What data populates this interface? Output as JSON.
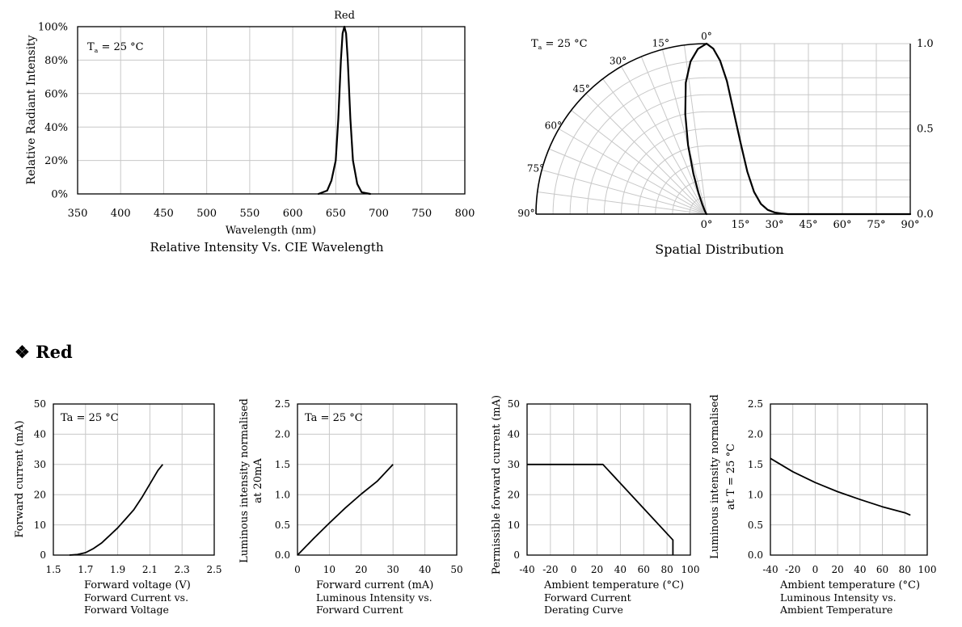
{
  "section": {
    "bullet": "❖",
    "title": "Red"
  },
  "chart_data": [
    {
      "id": "spectrum",
      "type": "line",
      "title": "Red",
      "caption": "Relative Intensity Vs. CIE Wavelength",
      "xlabel": "Wavelength (nm)",
      "ylabel": "Relative Radiant Intensity",
      "annotation_main": "T",
      "annotation_sub": "a",
      "annotation_rest": " = 25 °C",
      "xlim": [
        350,
        800
      ],
      "ylim": [
        0,
        100
      ],
      "xticks": [
        "350",
        "400",
        "450",
        "500",
        "550",
        "600",
        "650",
        "700",
        "750",
        "800"
      ],
      "yticks": [
        "0%",
        "20%",
        "40%",
        "60%",
        "80%",
        "100%"
      ],
      "grid": true,
      "series": [
        {
          "x": [
            630,
            640,
            645,
            650,
            653,
            656,
            658,
            660,
            662,
            664,
            667,
            670,
            675,
            680,
            690
          ],
          "y": [
            0,
            2,
            8,
            20,
            45,
            80,
            96,
            100,
            96,
            80,
            45,
            20,
            6,
            1,
            0
          ]
        }
      ]
    },
    {
      "id": "spatial",
      "type": "polar",
      "caption": "Spatial Distribution",
      "annotation_main": "T",
      "annotation_sub": "a",
      "annotation_rest": " = 25 °C",
      "angle_labels": [
        "0°",
        "15°",
        "30°",
        "45°",
        "60°",
        "75°",
        "90°"
      ],
      "right_yticks": [
        "0.0",
        "0.5",
        "1.0"
      ],
      "xticks": [
        "0°",
        "15°",
        "30°",
        "45°",
        "60°",
        "75°",
        "90°"
      ],
      "grid": true,
      "series": [
        {
          "angle_deg": [
            0,
            3,
            6,
            9,
            12,
            15,
            18,
            21,
            24,
            27,
            30,
            33,
            36
          ],
          "value": [
            1.0,
            0.97,
            0.9,
            0.78,
            0.6,
            0.42,
            0.25,
            0.13,
            0.06,
            0.025,
            0.01,
            0.004,
            0.0
          ]
        }
      ]
    },
    {
      "id": "iv",
      "type": "line",
      "annotation": "Ta = 25 °C",
      "xlabel": "Forward voltage (V)",
      "caption_lines": [
        "Forward Current vs.",
        "Forward Voltage"
      ],
      "ylabel": "Forward current (mA)",
      "xlim": [
        1.5,
        2.5
      ],
      "ylim": [
        0,
        50
      ],
      "xticks": [
        "1.5",
        "1.7",
        "1.9",
        "2.1",
        "2.3",
        "2.5"
      ],
      "yticks": [
        "0",
        "10",
        "20",
        "30",
        "40",
        "50"
      ],
      "grid": true,
      "series": [
        {
          "x": [
            1.6,
            1.65,
            1.7,
            1.75,
            1.8,
            1.85,
            1.9,
            1.95,
            2.0,
            2.05,
            2.1,
            2.15,
            2.18
          ],
          "y": [
            0,
            0.2,
            0.8,
            2.2,
            4,
            6.5,
            9,
            12,
            15,
            19,
            23.5,
            28,
            30
          ]
        }
      ]
    },
    {
      "id": "lum_current",
      "type": "line",
      "annotation": "Ta = 25 °C",
      "xlabel": "Forward current (mA)",
      "caption_lines": [
        "Luminous Intensity vs.",
        "Forward Current"
      ],
      "ylabel_lines": [
        "Luminous intensity normalised",
        "at 20mA"
      ],
      "xlim": [
        0,
        50
      ],
      "ylim": [
        0,
        2.5
      ],
      "xticks": [
        "0",
        "10",
        "20",
        "30",
        "40",
        "50"
      ],
      "yticks": [
        "0.0",
        "0.5",
        "1.0",
        "1.5",
        "2.0",
        "2.5"
      ],
      "grid": true,
      "series": [
        {
          "x": [
            0,
            5,
            10,
            15,
            20,
            25,
            30
          ],
          "y": [
            0,
            0.27,
            0.53,
            0.78,
            1.01,
            1.22,
            1.5
          ]
        }
      ]
    },
    {
      "id": "derating",
      "type": "line",
      "xlabel": "Ambient temperature (°C)",
      "caption_lines": [
        "Forward Current",
        "Derating  Curve"
      ],
      "ylabel": "Permissible forward current (mA)",
      "xlim": [
        -40,
        100
      ],
      "ylim": [
        0,
        50
      ],
      "xticks": [
        "-40",
        "-20",
        "0",
        "20",
        "40",
        "60",
        "80",
        "100"
      ],
      "yticks": [
        "0",
        "10",
        "20",
        "30",
        "40",
        "50"
      ],
      "grid": true,
      "series": [
        {
          "x": [
            -40,
            25,
            85,
            85
          ],
          "y": [
            30,
            30,
            5,
            0
          ]
        }
      ]
    },
    {
      "id": "lum_temp",
      "type": "line",
      "xlabel": "Ambient temperature (°C)",
      "caption_lines": [
        "Luminous Intensity vs.",
        "Ambient Temperature"
      ],
      "ylabel_lines": [
        "Luminous intensity normalised",
        "at T  = 25 °C"
      ],
      "ylabel_sub": "a",
      "xlim": [
        -40,
        100
      ],
      "ylim": [
        0,
        2.5
      ],
      "xticks": [
        "-40",
        "-20",
        "0",
        "20",
        "40",
        "60",
        "80",
        "100"
      ],
      "yticks": [
        "0.0",
        "0.5",
        "1.0",
        "1.5",
        "2.0",
        "2.5"
      ],
      "grid": true,
      "series": [
        {
          "x": [
            -40,
            -20,
            0,
            20,
            40,
            60,
            80,
            85
          ],
          "y": [
            1.6,
            1.38,
            1.2,
            1.05,
            0.92,
            0.8,
            0.7,
            0.66
          ]
        }
      ]
    }
  ]
}
